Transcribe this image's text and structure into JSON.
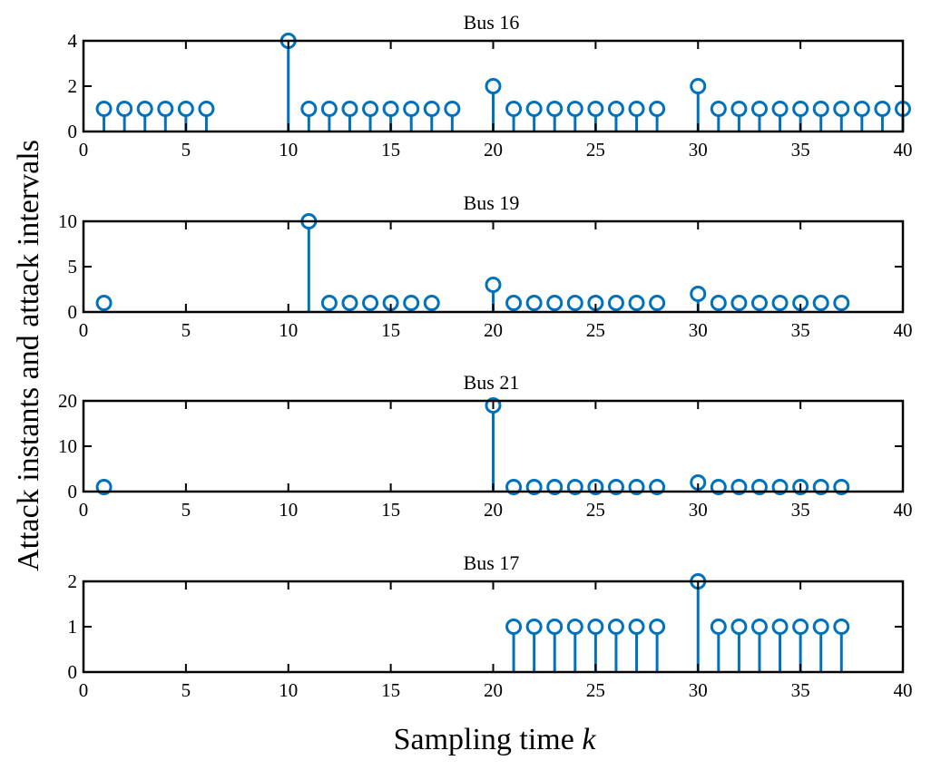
{
  "figure": {
    "ylabel": "Attack instants and attack intervals",
    "xlabel_text": "Sampling time ",
    "xlabel_var": "k"
  },
  "colors": {
    "stem": "#0072BD",
    "axes": "#000000",
    "background": "#ffffff"
  },
  "chart_data": [
    {
      "type": "stem",
      "title": "Bus 16",
      "xlim": [
        0,
        40
      ],
      "ylim": [
        0,
        4
      ],
      "xticks": [
        0,
        5,
        10,
        15,
        20,
        25,
        30,
        35,
        40
      ],
      "yticks": [
        0,
        2,
        4
      ],
      "x": [
        1,
        2,
        3,
        4,
        5,
        6,
        10,
        11,
        12,
        13,
        14,
        15,
        16,
        17,
        18,
        20,
        21,
        22,
        23,
        24,
        25,
        26,
        27,
        28,
        30,
        31,
        32,
        33,
        34,
        35,
        36,
        37,
        38,
        39,
        40
      ],
      "y": [
        1,
        1,
        1,
        1,
        1,
        1,
        4,
        1,
        1,
        1,
        1,
        1,
        1,
        1,
        1,
        2,
        1,
        1,
        1,
        1,
        1,
        1,
        1,
        1,
        2,
        1,
        1,
        1,
        1,
        1,
        1,
        1,
        1,
        1,
        1
      ]
    },
    {
      "type": "stem",
      "title": "Bus 19",
      "xlim": [
        0,
        40
      ],
      "ylim": [
        0,
        10
      ],
      "xticks": [
        0,
        5,
        10,
        15,
        20,
        25,
        30,
        35,
        40
      ],
      "yticks": [
        0,
        5,
        10
      ],
      "x": [
        1,
        11,
        12,
        13,
        14,
        15,
        16,
        17,
        20,
        21,
        22,
        23,
        24,
        25,
        26,
        27,
        28,
        30,
        31,
        32,
        33,
        34,
        35,
        36,
        37
      ],
      "y": [
        1,
        10,
        1,
        1,
        1,
        1,
        1,
        1,
        3,
        1,
        1,
        1,
        1,
        1,
        1,
        1,
        1,
        2,
        1,
        1,
        1,
        1,
        1,
        1,
        1
      ]
    },
    {
      "type": "stem",
      "title": "Bus 21",
      "xlim": [
        0,
        40
      ],
      "ylim": [
        0,
        20
      ],
      "xticks": [
        0,
        5,
        10,
        15,
        20,
        25,
        30,
        35,
        40
      ],
      "yticks": [
        0,
        10,
        20
      ],
      "x": [
        1,
        20,
        21,
        22,
        23,
        24,
        25,
        26,
        27,
        28,
        30,
        31,
        32,
        33,
        34,
        35,
        36,
        37
      ],
      "y": [
        1,
        19,
        1,
        1,
        1,
        1,
        1,
        1,
        1,
        1,
        2,
        1,
        1,
        1,
        1,
        1,
        1,
        1
      ]
    },
    {
      "type": "stem",
      "title": "Bus 17",
      "xlim": [
        0,
        40
      ],
      "ylim": [
        0,
        2
      ],
      "xticks": [
        0,
        5,
        10,
        15,
        20,
        25,
        30,
        35,
        40
      ],
      "yticks": [
        0,
        1,
        2
      ],
      "x": [
        21,
        22,
        23,
        24,
        25,
        26,
        27,
        28,
        30,
        31,
        32,
        33,
        34,
        35,
        36,
        37
      ],
      "y": [
        1,
        1,
        1,
        1,
        1,
        1,
        1,
        1,
        2,
        1,
        1,
        1,
        1,
        1,
        1,
        1
      ]
    }
  ]
}
